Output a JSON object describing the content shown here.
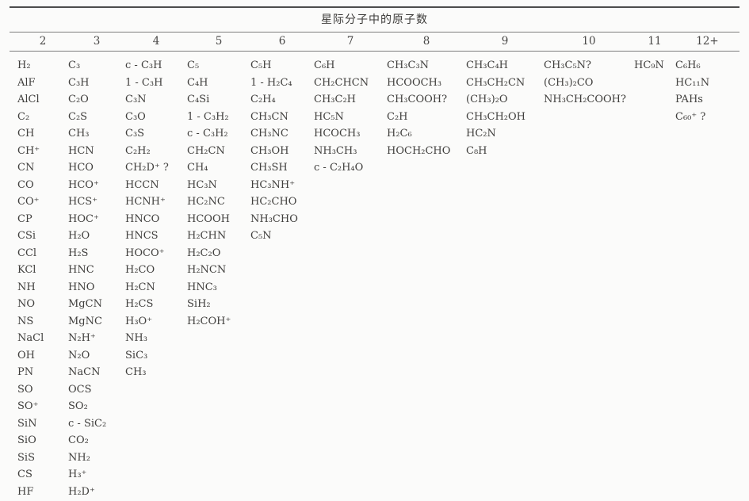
{
  "title": "星际分子中的原子数",
  "columns": [
    {
      "header": "2",
      "items": [
        "H₂",
        "AlF",
        "AlCl",
        "C₂",
        "CH",
        "CH⁺",
        "CN",
        "CO",
        "CO⁺",
        "CP",
        "CSi",
        "CCl",
        "KCl",
        "NH",
        "NO",
        "NS",
        "NaCl",
        "OH",
        "PN",
        "SO",
        "SO⁺",
        "SiN",
        "SiO",
        "SiS",
        "CS",
        "HF"
      ]
    },
    {
      "header": "3",
      "items": [
        "C₃",
        "C₃H",
        "C₂O",
        "C₂S",
        "CH₃",
        "HCN",
        "HCO",
        "HCO⁺",
        "HCS⁺",
        "HOC⁺",
        "H₂O",
        "H₂S",
        "HNC",
        "HNO",
        "MgCN",
        "MgNC",
        "N₂H⁺",
        "N₂O",
        "NaCN",
        "OCS",
        "SO₂",
        "c - SiC₂",
        "CO₂",
        "NH₂",
        "H₃⁺",
        "H₂D⁺"
      ]
    },
    {
      "header": "4",
      "items": [
        "c - C₃H",
        "1 - C₃H",
        "C₃N",
        "C₃O",
        "C₃S",
        "C₂H₂",
        "CH₂D⁺ ?",
        "HCCN",
        "HCNH⁺",
        "HNCO",
        "HNCS",
        "HOCO⁺",
        "H₂CO",
        "H₂CN",
        "H₂CS",
        "H₃O⁺",
        "NH₃",
        "SiC₃",
        "CH₃"
      ]
    },
    {
      "header": "5",
      "items": [
        "C₅",
        "C₄H",
        "C₄Si",
        "1 - C₃H₂",
        "c - C₃H₂",
        "CH₂CN",
        "CH₄",
        "HC₃N",
        "HC₂NC",
        "HCOOH",
        "H₂CHN",
        "H₂C₂O",
        "H₂NCN",
        "HNC₃",
        "SiH₂",
        "H₂COH⁺"
      ]
    },
    {
      "header": "6",
      "items": [
        "C₅H",
        "1 - H₂C₄",
        "C₂H₄",
        "CH₃CN",
        "CH₃NC",
        "CH₃OH",
        "CH₃SH",
        "HC₃NH⁺",
        "HC₂CHO",
        "NH₃CHO",
        "C₅N"
      ]
    },
    {
      "header": "7",
      "items": [
        "C₆H",
        "CH₂CHCN",
        "CH₃C₂H",
        "HC₅N",
        "HCOCH₃",
        "NH₃CH₃",
        "c - C₂H₄O"
      ]
    },
    {
      "header": "8",
      "items": [
        "CH₃C₃N",
        "HCOOCH₃",
        "CH₃COOH?",
        "C₂H",
        "H₂C₆",
        "HOCH₂CHO"
      ]
    },
    {
      "header": "9",
      "items": [
        "CH₃C₄H",
        "CH₃CH₂CN",
        "(CH₃)₂O",
        "CH₃CH₂OH",
        "HC₂N",
        "C₈H"
      ]
    },
    {
      "header": "10",
      "items": [
        "CH₃C₅N?",
        "(CH₃)₂CO",
        "NH₃CH₂COOH?"
      ]
    },
    {
      "header": "11",
      "items": [
        "HC₉N"
      ]
    },
    {
      "header": "12+",
      "items": [
        "C₆H₆",
        "HC₁₁N",
        "PAHs",
        "C₆₀⁺ ?"
      ]
    }
  ]
}
